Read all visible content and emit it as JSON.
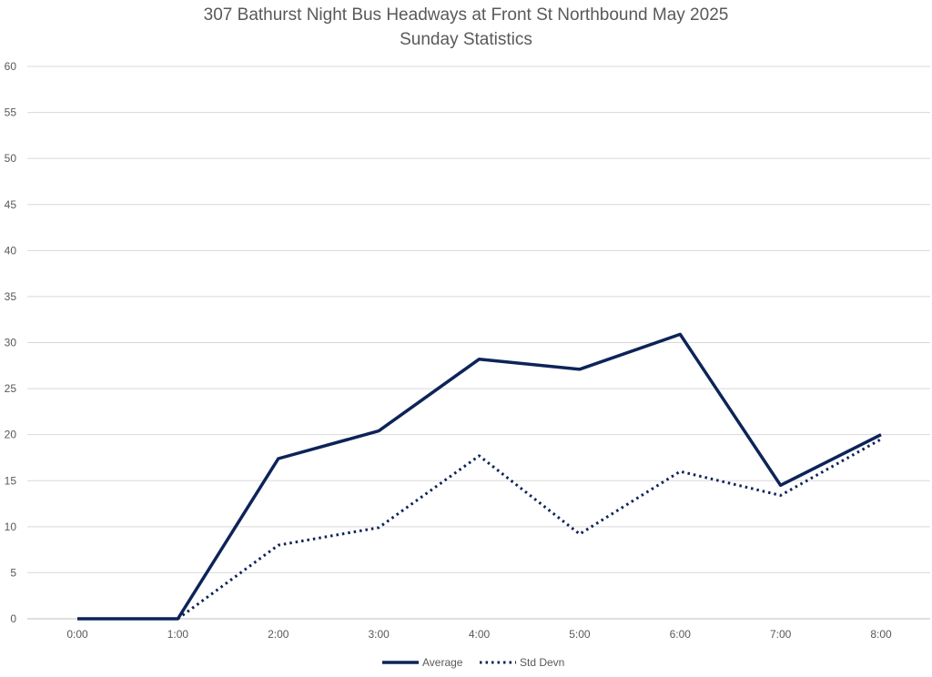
{
  "chart_data": {
    "type": "line",
    "title": "307 Bathurst Night Bus Headways at Front St Northbound May 2025",
    "subtitle": "Sunday Statistics",
    "xlabel": "",
    "ylabel": "",
    "categories": [
      "0:00",
      "1:00",
      "2:00",
      "3:00",
      "4:00",
      "5:00",
      "6:00",
      "7:00",
      "8:00"
    ],
    "ylim": [
      0,
      60
    ],
    "yticks": [
      0,
      5,
      10,
      15,
      20,
      25,
      30,
      35,
      40,
      45,
      50,
      55,
      60
    ],
    "grid": true,
    "legend_position": "bottom",
    "series": [
      {
        "name": "Average",
        "style": "solid",
        "color": "#0d2359",
        "values": [
          0,
          0,
          17.4,
          20.4,
          28.2,
          27.1,
          30.9,
          14.5,
          20.0
        ]
      },
      {
        "name": "Std Devn",
        "style": "dotted",
        "color": "#0d2359",
        "values": [
          null,
          0,
          8.0,
          9.9,
          17.7,
          9.2,
          16.0,
          13.4,
          19.5
        ]
      }
    ]
  }
}
